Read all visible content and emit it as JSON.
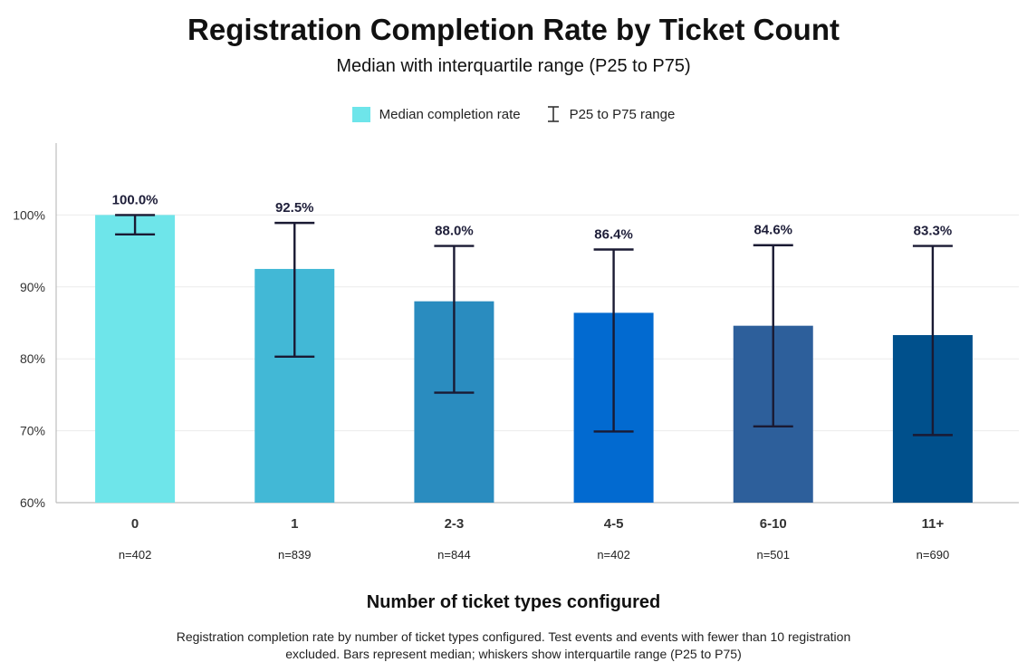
{
  "chart_data": {
    "type": "bar",
    "title": "Registration Completion Rate by Ticket Count",
    "subtitle": "Median with interquartile range (P25 to P75)",
    "xlabel": "Number of ticket types configured",
    "ylabel": "",
    "ylim": [
      60,
      110
    ],
    "yticks": [
      60,
      70,
      80,
      90,
      100
    ],
    "ytick_labels": [
      "60%",
      "70%",
      "80%",
      "90%",
      "100%"
    ],
    "grid": "horizontal",
    "legend_position": "top-center",
    "legend": {
      "median_label": "Median completion rate",
      "range_label": "P25 to P75 range"
    },
    "categories": [
      "0",
      "1",
      "2-3",
      "4-5",
      "6-10",
      "11+"
    ],
    "sample_sizes": [
      "n=402",
      "n=839",
      "n=844",
      "n=402",
      "n=501",
      "n=690"
    ],
    "values": [
      100.0,
      92.5,
      88.0,
      86.4,
      84.6,
      83.3
    ],
    "value_labels": [
      "100.0%",
      "92.5%",
      "88.0%",
      "86.4%",
      "84.6%",
      "83.3%"
    ],
    "p25": [
      97.3,
      80.3,
      75.3,
      69.9,
      70.6,
      69.4
    ],
    "p75": [
      100.0,
      98.9,
      95.7,
      95.2,
      95.8,
      95.7
    ],
    "bar_colors": [
      "#6ee5ea",
      "#42b8d6",
      "#2a8cbf",
      "#026ad0",
      "#2d5f9b",
      "#00508c"
    ],
    "whisker_color": "#1a1a33"
  },
  "caption": "Registration completion rate by number of ticket types configured. Test events and events with fewer than 10 registration excluded.  Bars represent median; whiskers show interquartile range (P25 to P75)"
}
